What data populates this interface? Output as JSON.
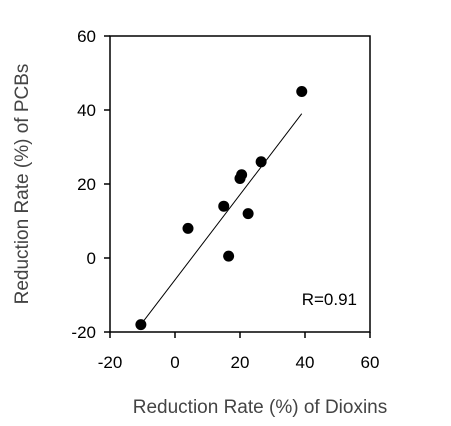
{
  "chart_data": {
    "type": "scatter",
    "xlabel": "Reduction Rate (%) of Dioxins",
    "ylabel": "Reduction Rate (%) of PCBs",
    "xlim": [
      -20,
      60
    ],
    "ylim": [
      -20,
      60
    ],
    "xticks": [
      "-20",
      "0",
      "20",
      "40",
      "60"
    ],
    "yticks": [
      "-20",
      "0",
      "20",
      "40",
      "60"
    ],
    "grid": false,
    "annotation": "R=0.91",
    "points": [
      {
        "x": -10.5,
        "y": -18
      },
      {
        "x": 4,
        "y": 8
      },
      {
        "x": 15,
        "y": 14
      },
      {
        "x": 16.5,
        "y": 0.5
      },
      {
        "x": 20,
        "y": 21.5
      },
      {
        "x": 20.5,
        "y": 22.5
      },
      {
        "x": 22.5,
        "y": 12
      },
      {
        "x": 26.5,
        "y": 26
      },
      {
        "x": 39,
        "y": 45
      }
    ],
    "trendline": [
      {
        "x": -10.5,
        "y": -18
      },
      {
        "x": 39,
        "y": 39
      }
    ]
  }
}
